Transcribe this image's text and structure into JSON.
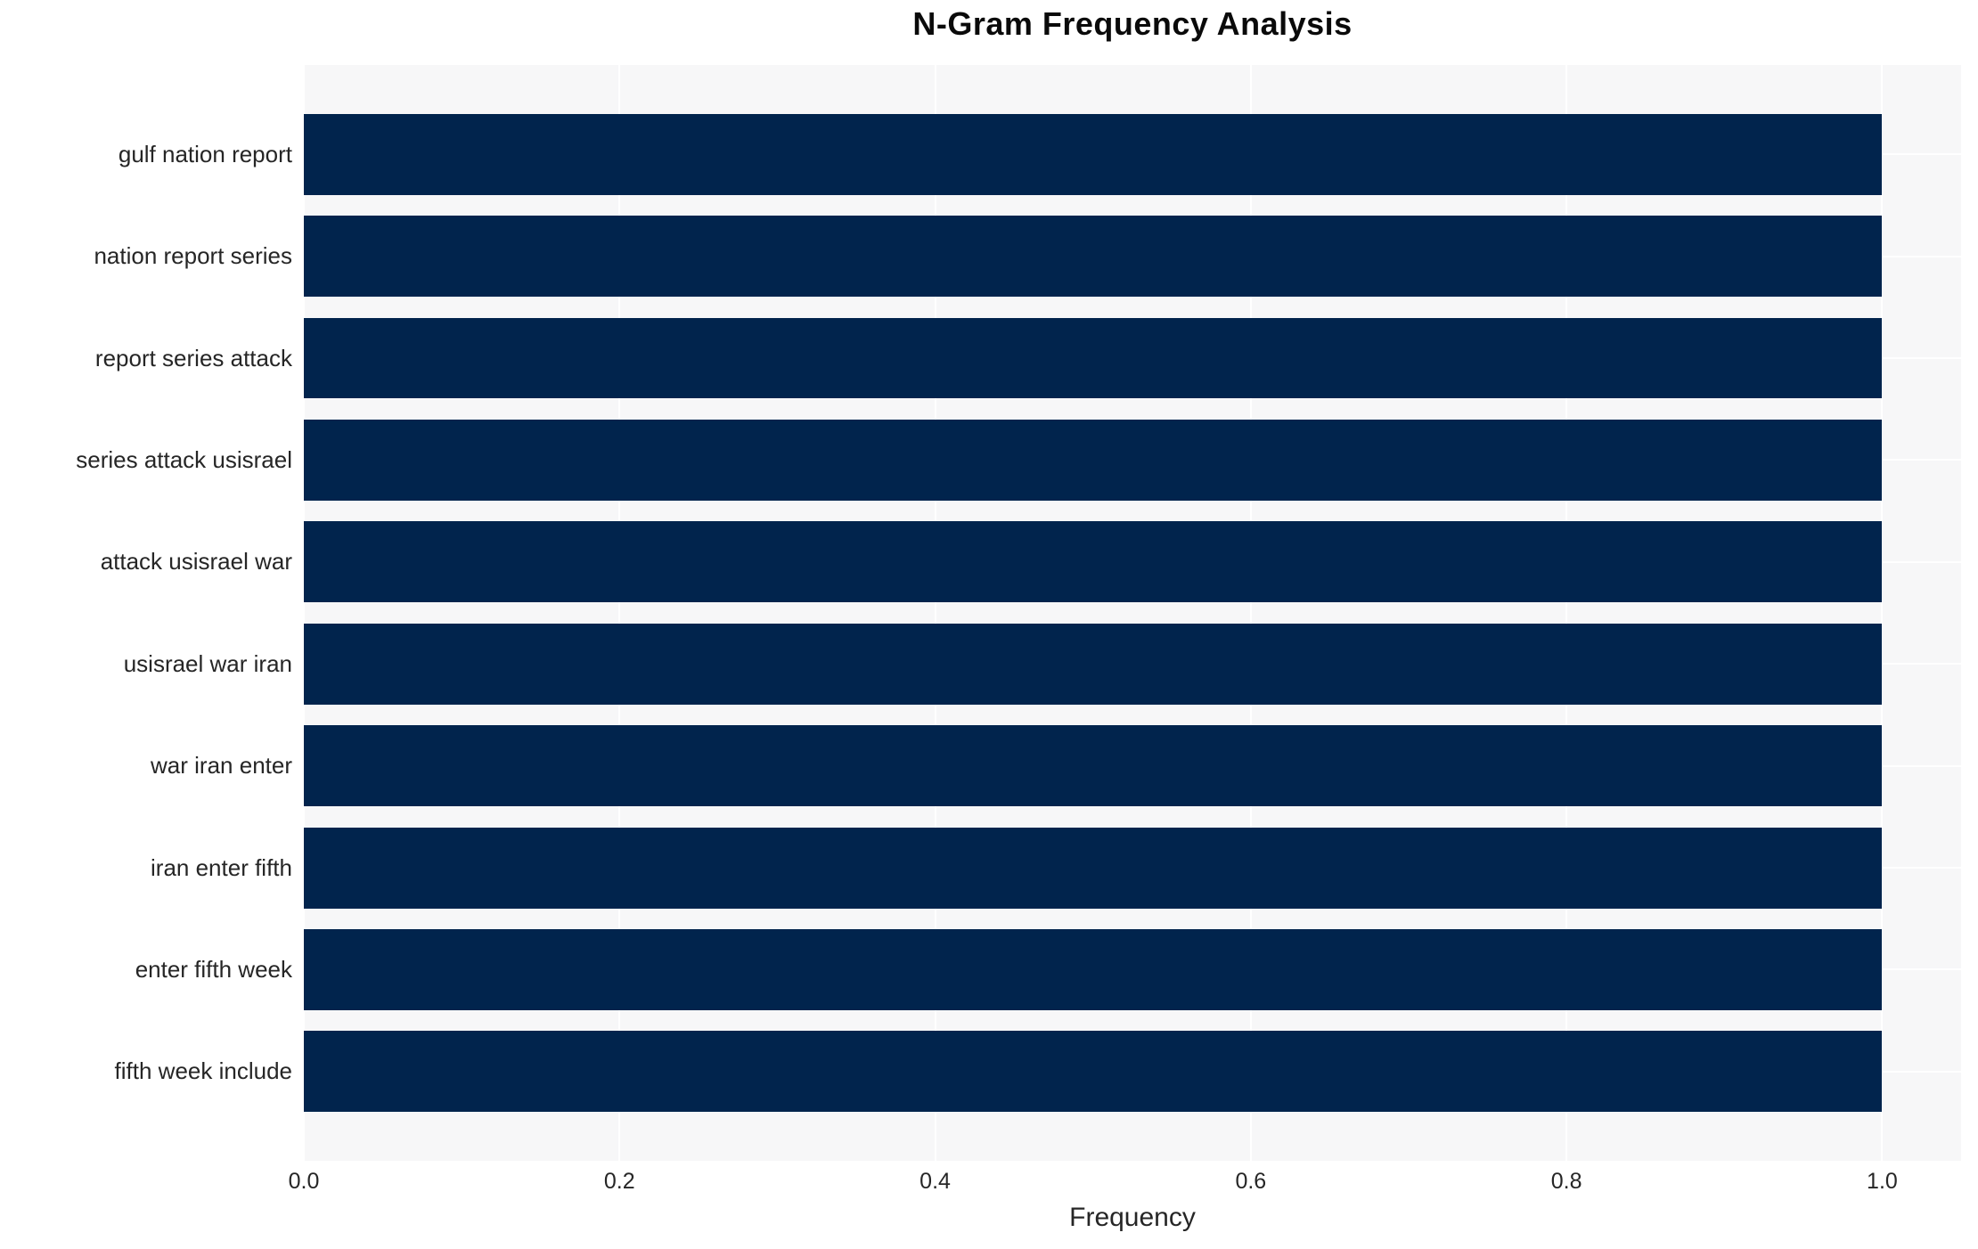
{
  "chart_data": {
    "type": "bar",
    "orientation": "horizontal",
    "title": "N-Gram Frequency Analysis",
    "xlabel": "Frequency",
    "ylabel": "",
    "categories": [
      "gulf nation report",
      "nation report series",
      "report series attack",
      "series attack usisrael",
      "attack usisrael war",
      "usisrael war iran",
      "war iran enter",
      "iran enter fifth",
      "enter fifth week",
      "fifth week include"
    ],
    "values": [
      1.0,
      1.0,
      1.0,
      1.0,
      1.0,
      1.0,
      1.0,
      1.0,
      1.0,
      1.0
    ],
    "x_ticks": [
      0.0,
      0.2,
      0.4,
      0.6,
      0.8,
      1.0
    ],
    "x_tick_labels": [
      "0.0",
      "0.2",
      "0.4",
      "0.6",
      "0.8",
      "1.0"
    ],
    "xlim": [
      0,
      1.05
    ],
    "grid": true,
    "legend": false,
    "colors": {
      "bar": "#01244d",
      "plot_background": "#f7f7f8",
      "grid": "#ffffff",
      "text": "#262626",
      "title_text": "#0a0a0a"
    }
  }
}
